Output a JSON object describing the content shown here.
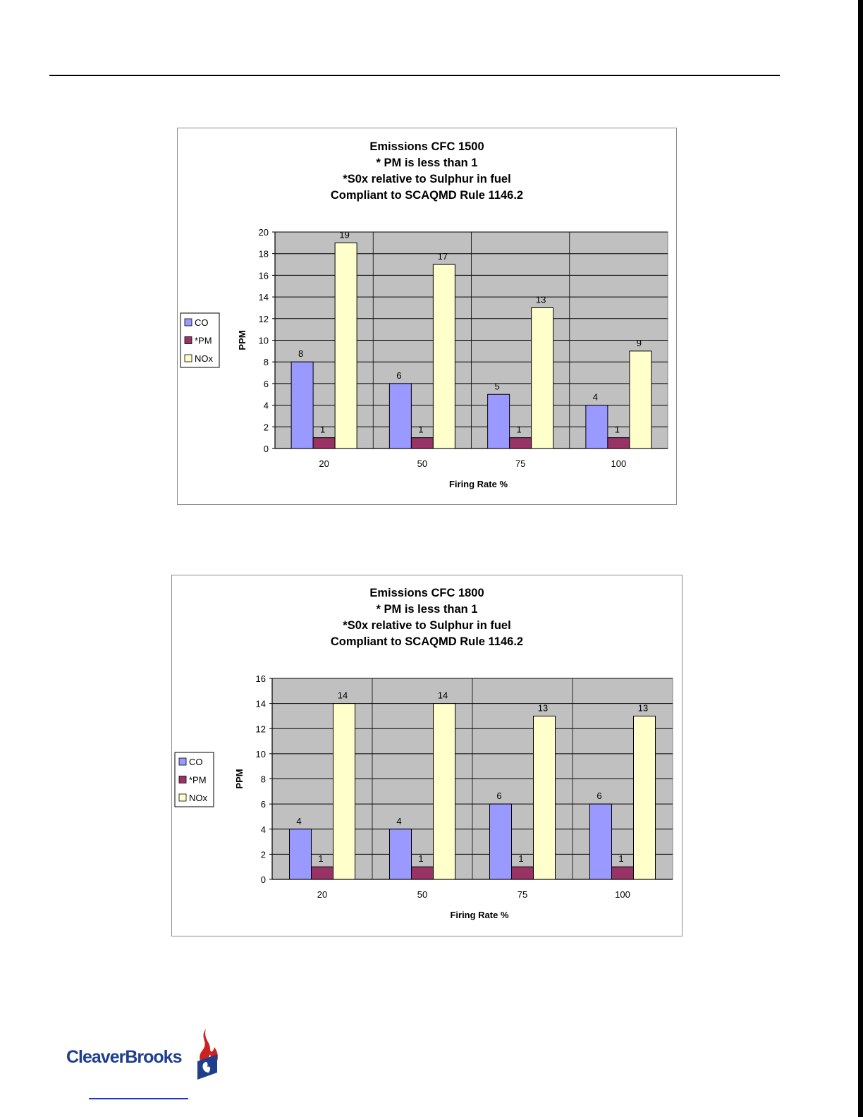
{
  "charts": [
    {
      "title_lines": [
        "Emissions CFC 1500",
        "* PM is less than 1",
        "*S0x  relative to Sulphur in fuel",
        "Compliant to SCAQMD Rule  1146.2"
      ]
    },
    {
      "title_lines": [
        "Emissions CFC 1800",
        "* PM is less than 1",
        "*S0x  relative to Sulphur in fuel",
        "Compliant to SCAQMD Rule  1146.2"
      ]
    }
  ],
  "chart_data": [
    {
      "type": "bar",
      "title": "Emissions CFC 1500 * PM is less than 1 *S0x  relative to Sulphur in fuel Compliant to SCAQMD Rule  1146.2",
      "xlabel": "Firing Rate %",
      "ylabel": "PPM",
      "categories": [
        "20",
        "50",
        "75",
        "100"
      ],
      "ylim": [
        0,
        20
      ],
      "yticks": [
        0,
        2,
        4,
        6,
        8,
        10,
        12,
        14,
        16,
        18,
        20
      ],
      "grid": true,
      "legend": "left",
      "series": [
        {
          "name": "CO",
          "color": "#9999ff",
          "values": [
            8,
            6,
            5,
            4
          ]
        },
        {
          "name": "*PM",
          "color": "#993366",
          "values": [
            1,
            1,
            1,
            1
          ]
        },
        {
          "name": "NOx",
          "color": "#ffffcc",
          "values": [
            19,
            17,
            13,
            9
          ]
        }
      ]
    },
    {
      "type": "bar",
      "title": "Emissions CFC 1800 * PM is less than 1 *S0x  relative to Sulphur in fuel Compliant to SCAQMD Rule  1146.2",
      "xlabel": "Firing Rate %",
      "ylabel": "PPM",
      "categories": [
        "20",
        "50",
        "75",
        "100"
      ],
      "ylim": [
        0,
        16
      ],
      "yticks": [
        0,
        2,
        4,
        6,
        8,
        10,
        12,
        14,
        16
      ],
      "grid": true,
      "legend": "left",
      "series": [
        {
          "name": "CO",
          "color": "#9999ff",
          "values": [
            4,
            4,
            6,
            6
          ]
        },
        {
          "name": "*PM",
          "color": "#993366",
          "values": [
            1,
            1,
            1,
            1
          ]
        },
        {
          "name": "NOx",
          "color": "#ffffcc",
          "values": [
            14,
            14,
            13,
            13
          ]
        }
      ]
    }
  ],
  "footer": {
    "logo_text": "CleaverBrooks"
  }
}
